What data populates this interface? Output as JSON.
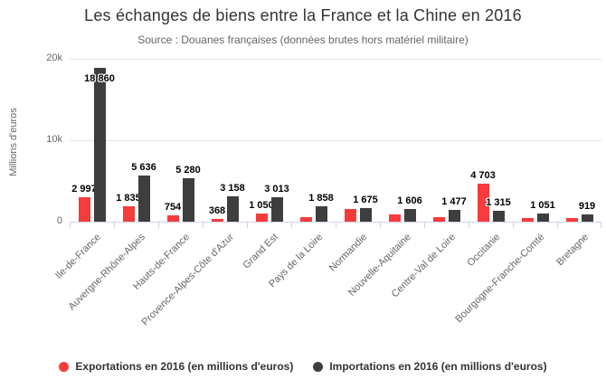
{
  "chart_data": {
    "type": "bar",
    "title": "Les échanges de biens entre la France et la Chine en 2016",
    "subtitle": "Source : Douanes françaises (données brutes hors matériel militaire)",
    "ylabel": "Millions d'euros",
    "ylim": [
      0,
      20000
    ],
    "ytick_labels": [
      "0",
      "10k",
      "20k"
    ],
    "grid": true,
    "legend_position": "bottom",
    "categories": [
      "Ile-de-France",
      "Auvergne-Rhône-Alpes",
      "Hauts-de-France",
      "Provence-Alpes-Côte d'Azur",
      "Grand Est",
      "Pays de la Loire",
      "Normandie",
      "Nouvelle-Aquitaine",
      "Centre-Val de Loire",
      "Occitanie",
      "Bourgogne-Franche-Comté",
      "Bretagne"
    ],
    "series": [
      {
        "name": "Exportations en 2016 (en millions d'euros)",
        "color": "#f83b3b",
        "values": [
          2997,
          1835,
          754,
          368,
          1050,
          550,
          1500,
          900,
          550,
          4703,
          450,
          450
        ],
        "data_labels": [
          "2 997",
          "1 835",
          "754",
          "368",
          "1 050",
          "",
          "",
          "",
          "",
          "4 703",
          "",
          ""
        ]
      },
      {
        "name": "Importations en 2016 (en millions d'euros)",
        "color": "#3e3e3e",
        "values": [
          18860,
          5636,
          5280,
          3158,
          3013,
          1858,
          1675,
          1606,
          1477,
          1315,
          1051,
          919
        ],
        "data_labels": [
          "18 860",
          "5 636",
          "5 280",
          "3 158",
          "3 013",
          "1 858",
          "1 675",
          "1 606",
          "1 477",
          "1 315",
          "1 051",
          "919"
        ]
      }
    ]
  }
}
